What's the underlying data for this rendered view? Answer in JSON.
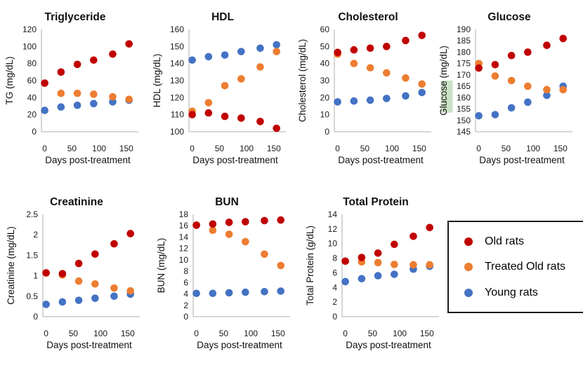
{
  "palette": {
    "old_rats": "#c00000",
    "treated_old_rats": "#ed7d31",
    "young_rats": "#4472c4",
    "axis_line": "#bfbfbf",
    "tick_text": "#1a1a1a",
    "highlight_green": "#cbe2c6"
  },
  "legend": {
    "items": [
      {
        "label": "Old rats",
        "color_key": "old_rats"
      },
      {
        "label": "Treated Old rats",
        "color_key": "treated_old_rats"
      },
      {
        "label": "Young rats",
        "color_key": "young_rats"
      }
    ]
  },
  "chart_data": [
    {
      "type": "scatter",
      "title": "Triglyceride",
      "ylabel": "TG (mg/dL)",
      "xlabel": "Days post-treatment",
      "ylim": [
        0,
        120
      ],
      "ytick_step": 20,
      "xticks": [
        0,
        50,
        100,
        150
      ],
      "x": [
        0,
        30,
        60,
        90,
        125,
        155
      ],
      "grid": false,
      "series": [
        {
          "name": "Old rats",
          "color_key": "old_rats",
          "values": [
            57,
            70,
            79,
            84,
            91,
            103
          ]
        },
        {
          "name": "Treated Old rats",
          "color_key": "treated_old_rats",
          "values": [
            57,
            45,
            45,
            44,
            41,
            38
          ]
        },
        {
          "name": "Young rats",
          "color_key": "young_rats",
          "values": [
            25,
            29,
            31,
            33,
            35,
            37
          ]
        }
      ]
    },
    {
      "type": "scatter",
      "title": "HDL",
      "ylabel": "HDL (mg/dL)",
      "xlabel": "Days post-treatment",
      "ylim": [
        100,
        160
      ],
      "ytick_step": 10,
      "xticks": [
        0,
        50,
        100,
        150
      ],
      "x": [
        0,
        30,
        60,
        90,
        125,
        155
      ],
      "grid": false,
      "series": [
        {
          "name": "Old rats",
          "color_key": "old_rats",
          "values": [
            110,
            111,
            109,
            108,
            106,
            102
          ]
        },
        {
          "name": "Treated Old rats",
          "color_key": "treated_old_rats",
          "values": [
            112,
            117,
            127,
            131,
            138,
            147
          ]
        },
        {
          "name": "Young rats",
          "color_key": "young_rats",
          "values": [
            142,
            144,
            145,
            147,
            149,
            151
          ]
        }
      ]
    },
    {
      "type": "scatter",
      "title": "Cholesterol",
      "ylabel": "Cholesterol (mg/dL)",
      "xlabel": "Days post-treatment",
      "ylim": [
        0,
        60
      ],
      "ytick_step": 10,
      "xticks": [
        0,
        50,
        100,
        150
      ],
      "x": [
        0,
        30,
        60,
        90,
        125,
        155
      ],
      "grid": false,
      "series": [
        {
          "name": "Old rats",
          "color_key": "old_rats",
          "values": [
            46.5,
            48,
            49,
            50,
            53.5,
            56.5
          ]
        },
        {
          "name": "Treated Old rats",
          "color_key": "treated_old_rats",
          "values": [
            45.5,
            40,
            37.5,
            34.5,
            31.5,
            28
          ]
        },
        {
          "name": "Young rats",
          "color_key": "young_rats",
          "values": [
            17.5,
            18,
            18.5,
            19.5,
            21,
            23
          ]
        }
      ]
    },
    {
      "type": "scatter",
      "title": "Glucose",
      "ylabel": "Glucose (mg/dL)",
      "ylabel_highlight": true,
      "xlabel": "Days post-treatment",
      "ylim": [
        145,
        190
      ],
      "ytick_step": 5,
      "xticks": [
        0,
        50,
        100,
        150
      ],
      "x": [
        0,
        30,
        60,
        90,
        125,
        155
      ],
      "grid": false,
      "series": [
        {
          "name": "Old rats",
          "color_key": "old_rats",
          "values": [
            173,
            174.5,
            178.5,
            180,
            183,
            186
          ]
        },
        {
          "name": "Treated Old rats",
          "color_key": "treated_old_rats",
          "values": [
            175,
            169.5,
            167.5,
            165,
            163.5,
            163.5
          ]
        },
        {
          "name": "Young rats",
          "color_key": "young_rats",
          "values": [
            152,
            152.5,
            155.5,
            158,
            161,
            165
          ]
        }
      ]
    },
    {
      "type": "scatter",
      "title": "Creatinine",
      "ylabel": "Creatinine (mg/dL)",
      "xlabel": "Days post-treatment",
      "ylim": [
        0,
        2.5
      ],
      "ytick_step": 0.5,
      "xticks": [
        0,
        50,
        100,
        150
      ],
      "x": [
        0,
        30,
        60,
        90,
        125,
        155
      ],
      "grid": false,
      "series": [
        {
          "name": "Old rats",
          "color_key": "old_rats",
          "values": [
            1.07,
            1.05,
            1.3,
            1.53,
            1.78,
            2.03
          ]
        },
        {
          "name": "Treated Old rats",
          "color_key": "treated_old_rats",
          "values": [
            1.07,
            1.02,
            0.87,
            0.8,
            0.7,
            0.63
          ]
        },
        {
          "name": "Young rats",
          "color_key": "young_rats",
          "values": [
            0.3,
            0.36,
            0.4,
            0.45,
            0.5,
            0.55
          ]
        }
      ]
    },
    {
      "type": "scatter",
      "title": "BUN",
      "ylabel": "BUN (mg/dL)",
      "xlabel": "Days post-treatment",
      "ylim": [
        0,
        18
      ],
      "ytick_step": 2,
      "xticks": [
        0,
        50,
        100,
        150
      ],
      "x": [
        0,
        30,
        60,
        90,
        125,
        155
      ],
      "grid": false,
      "series": [
        {
          "name": "Old rats",
          "color_key": "old_rats",
          "values": [
            16.1,
            16.3,
            16.6,
            16.7,
            16.9,
            17
          ]
        },
        {
          "name": "Treated Old rats",
          "color_key": "treated_old_rats",
          "values": [
            16.1,
            15.2,
            14.5,
            13.2,
            11,
            9
          ]
        },
        {
          "name": "Young rats",
          "color_key": "young_rats",
          "values": [
            4.1,
            4.1,
            4.2,
            4.3,
            4.4,
            4.5
          ]
        }
      ]
    },
    {
      "type": "scatter",
      "title": "Total Protein",
      "ylabel": "Total Protein (g/dL)",
      "xlabel": "Days post-treatment",
      "ylim": [
        0,
        14
      ],
      "ytick_step": 2,
      "xticks": [
        0,
        50,
        100,
        150
      ],
      "x": [
        0,
        30,
        60,
        90,
        125,
        155
      ],
      "grid": false,
      "series": [
        {
          "name": "Old rats",
          "color_key": "old_rats",
          "values": [
            7.6,
            8.1,
            8.7,
            9.9,
            11,
            12.2
          ]
        },
        {
          "name": "Treated Old rats",
          "color_key": "treated_old_rats",
          "values": [
            7.6,
            7.5,
            7.4,
            7.15,
            7.1,
            7.1
          ]
        },
        {
          "name": "Young rats",
          "color_key": "young_rats",
          "values": [
            4.8,
            5.2,
            5.6,
            5.8,
            6.5,
            6.9
          ]
        }
      ]
    }
  ]
}
